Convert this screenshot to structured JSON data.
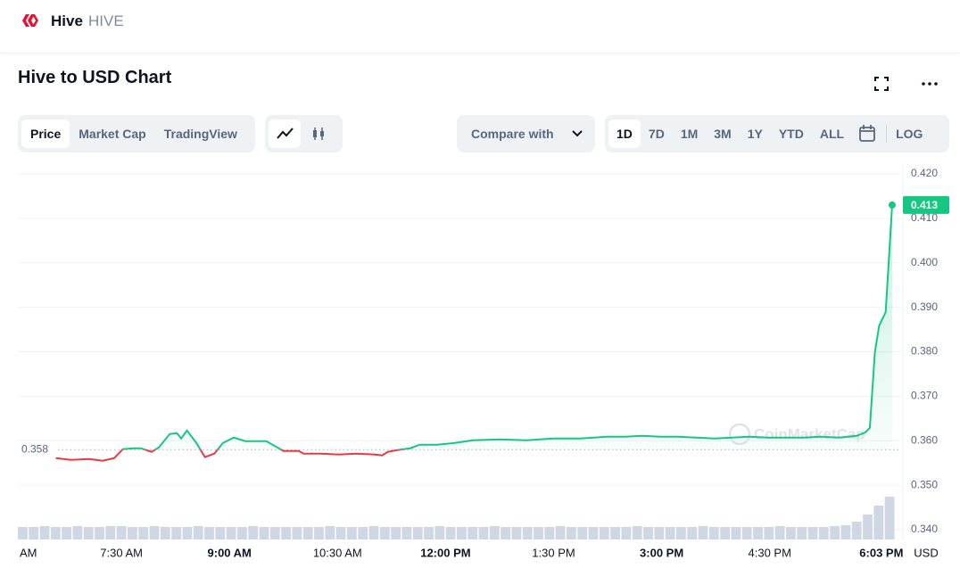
{
  "header": {
    "name": "Hive",
    "symbol": "HIVE"
  },
  "title": "Hive to USD Chart",
  "toolbar": {
    "views": [
      "Price",
      "Market Cap",
      "TradingView"
    ],
    "active_view": 0,
    "compare": "Compare with",
    "ranges": [
      "1D",
      "7D",
      "1M",
      "3M",
      "1Y",
      "YTD",
      "ALL"
    ],
    "active_range": 0,
    "log": "LOG"
  },
  "chart_data": {
    "type": "line",
    "x": [
      6.59,
      6.8,
      7.05,
      7.24,
      7.4,
      7.52,
      7.67,
      7.77,
      7.92,
      8.02,
      8.17,
      8.27,
      8.33,
      8.41,
      8.54,
      8.66,
      8.79,
      8.91,
      9.06,
      9.22,
      9.51,
      9.75,
      9.96,
      10.03,
      10.27,
      10.52,
      10.77,
      11.02,
      11.12,
      11.2,
      11.33,
      11.51,
      11.64,
      11.88,
      12.13,
      12.38,
      12.75,
      13.12,
      13.5,
      13.87,
      14.24,
      14.49,
      14.73,
      14.98,
      15.23,
      15.48,
      15.73,
      15.97,
      16.22,
      16.47,
      16.72,
      16.97,
      17.21,
      17.46,
      17.71,
      17.83,
      17.89,
      17.96,
      18.02,
      18.11,
      18.2
    ],
    "values": [
      0.3561,
      0.3557,
      0.3559,
      0.3555,
      0.3561,
      0.3581,
      0.3583,
      0.3583,
      0.3575,
      0.3585,
      0.3615,
      0.3617,
      0.3605,
      0.3623,
      0.3595,
      0.3563,
      0.3571,
      0.3595,
      0.3607,
      0.3599,
      0.3599,
      0.3577,
      0.3577,
      0.3571,
      0.3571,
      0.3569,
      0.3571,
      0.3569,
      0.3567,
      0.3575,
      0.3579,
      0.3583,
      0.3591,
      0.3591,
      0.3595,
      0.3601,
      0.3603,
      0.3601,
      0.3605,
      0.3605,
      0.3609,
      0.3609,
      0.3611,
      0.3609,
      0.3609,
      0.3607,
      0.3605,
      0.3607,
      0.3609,
      0.3607,
      0.3607,
      0.3607,
      0.3609,
      0.3607,
      0.3611,
      0.3619,
      0.3629,
      0.3799,
      0.3859,
      0.3889,
      0.413
    ],
    "color_up": "#16c784",
    "color_down": "#ea3943",
    "reference_price": 0.358,
    "current_price": 0.413,
    "xlim": [
      6.0,
      18.25
    ],
    "xticks": [
      {
        "value": 6.0,
        "label": "AM"
      },
      {
        "value": 7.5,
        "label": "7:30 AM"
      },
      {
        "value": 9.0,
        "label": "9:00 AM",
        "emphasis": true
      },
      {
        "value": 10.5,
        "label": "10:30 AM"
      },
      {
        "value": 12.0,
        "label": "12:00 PM",
        "emphasis": true
      },
      {
        "value": 13.5,
        "label": "1:30 PM"
      },
      {
        "value": 15.0,
        "label": "3:00 PM",
        "emphasis": true
      },
      {
        "value": 16.5,
        "label": "4:30 PM"
      },
      {
        "value": 18.05,
        "label": "6:03 PM",
        "emphasis": true
      }
    ],
    "ylim": [
      0.34,
      0.42
    ],
    "yticks": [
      {
        "value": 0.42,
        "label": "0.420"
      },
      {
        "value": 0.41,
        "label": "0.410"
      },
      {
        "value": 0.4,
        "label": "0.400"
      },
      {
        "value": 0.39,
        "label": "0.390"
      },
      {
        "value": 0.38,
        "label": "0.380"
      },
      {
        "value": 0.37,
        "label": "0.370"
      },
      {
        "value": 0.36,
        "label": "0.360"
      },
      {
        "value": 0.35,
        "label": "0.350"
      },
      {
        "value": 0.34,
        "label": "0.340"
      }
    ],
    "unit": "USD",
    "grid": true,
    "watermark": "CoinMarketCap",
    "volume": {
      "lim": [
        0,
        60
      ],
      "color": "#cfd6e4",
      "values": [
        14,
        14,
        15,
        14,
        14,
        15,
        14,
        14,
        15,
        15,
        14,
        14,
        15,
        14,
        14,
        14,
        15,
        14,
        14,
        14,
        14,
        15,
        14,
        14,
        14,
        14,
        14,
        14,
        15,
        14,
        14,
        14,
        15,
        14,
        14,
        14,
        14,
        14,
        15,
        14,
        14,
        14,
        14,
        15,
        14,
        14,
        14,
        14,
        14,
        15,
        14,
        14,
        14,
        14,
        14,
        14,
        15,
        14,
        14,
        14,
        14,
        14,
        15,
        14,
        14,
        14,
        14,
        14,
        14,
        15,
        14,
        14,
        14,
        14,
        15,
        16,
        20,
        28,
        38,
        48
      ]
    }
  }
}
